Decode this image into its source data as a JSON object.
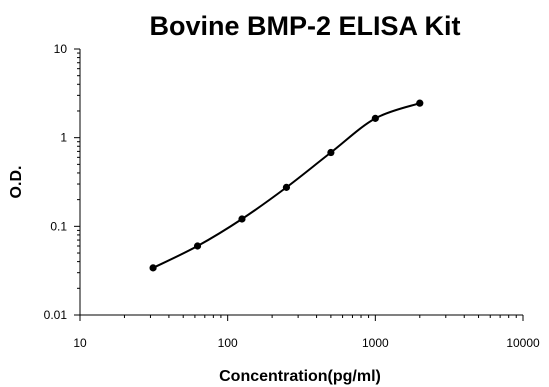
{
  "chart_data": {
    "type": "scatter",
    "title": "Bovine BMP-2 ELISA Kit",
    "xlabel": "Concentration(pg/ml)",
    "ylabel": "O.D.",
    "x_scale": "log",
    "y_scale": "log",
    "xlim": [
      10,
      10000
    ],
    "ylim": [
      0.01,
      10
    ],
    "x_ticks": [
      10,
      100,
      1000,
      10000
    ],
    "x_tick_labels": [
      "10",
      "100",
      "1000",
      "10000"
    ],
    "y_ticks": [
      0.01,
      0.1,
      1,
      10
    ],
    "y_tick_labels": [
      "0.01",
      "0.1",
      "1",
      "10"
    ],
    "grid": false,
    "legend": "none",
    "series": [
      {
        "x": [
          31.25,
          62.5,
          125,
          250,
          500,
          1000,
          2000
        ],
        "y": [
          0.034,
          0.06,
          0.121,
          0.275,
          0.68,
          1.65,
          2.45
        ],
        "fit_curve": true,
        "marker_color": "#000000",
        "line_color": "#000000"
      }
    ]
  }
}
